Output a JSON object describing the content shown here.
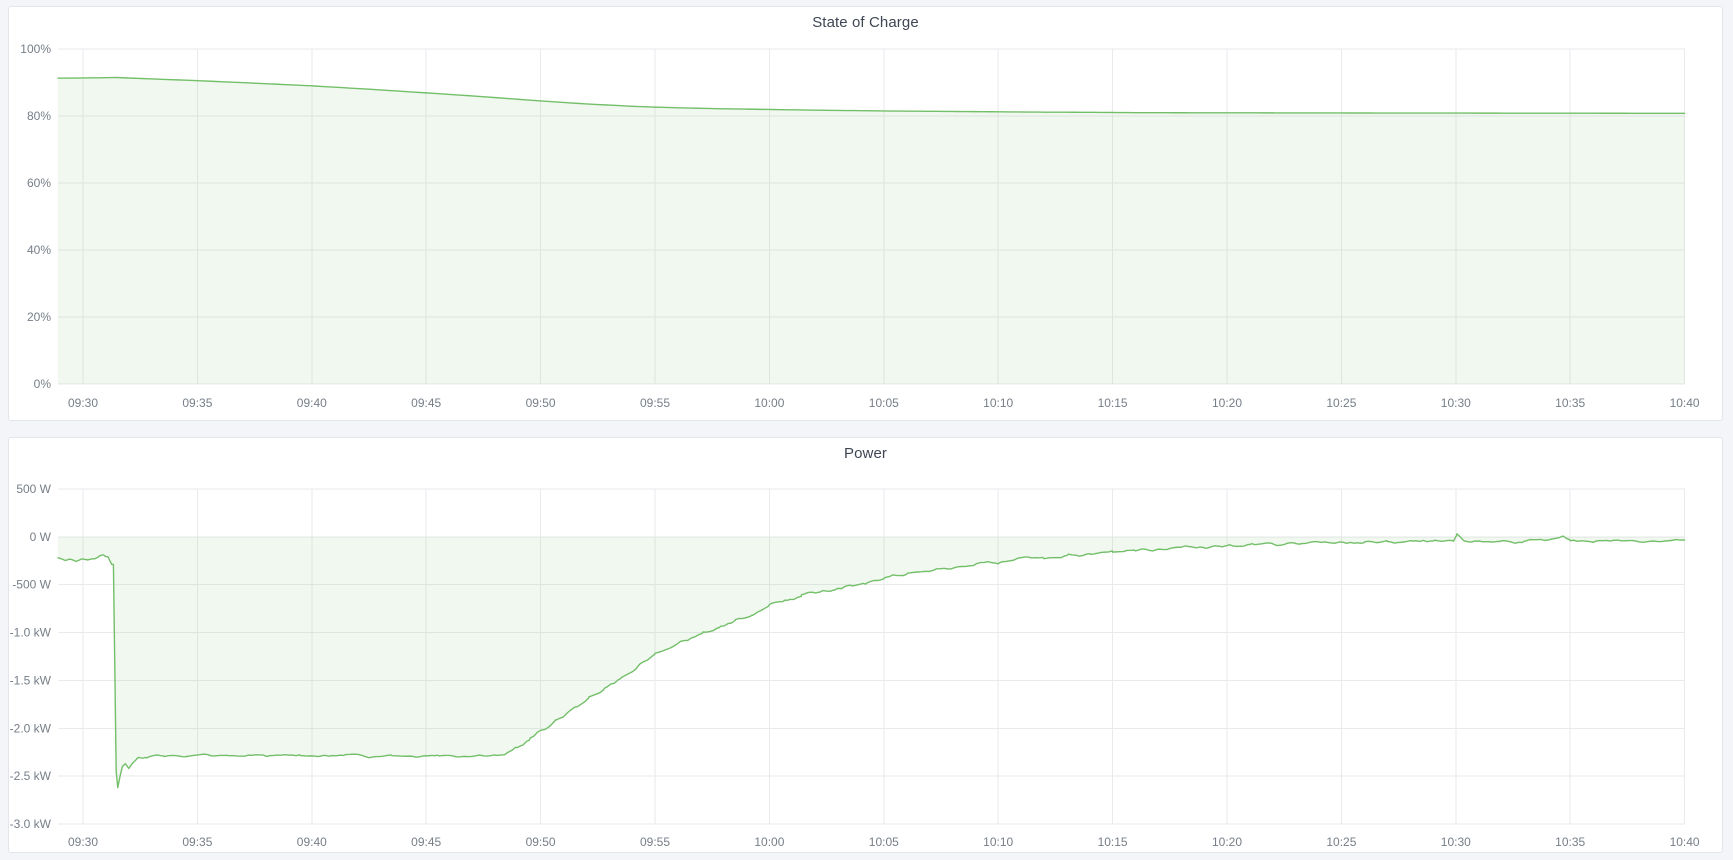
{
  "page": {
    "background": "#f4f5f9",
    "panel_background": "#ffffff",
    "panel_border": "#e2e6ea"
  },
  "panels": [
    {
      "title": "State of Charge"
    },
    {
      "title": "Power"
    }
  ],
  "chart_data": [
    {
      "type": "area",
      "title": "State of Charge",
      "xlabel": "",
      "ylabel": "",
      "legend": "none",
      "grid": true,
      "x_tick_labels": [
        "09:30",
        "09:35",
        "09:40",
        "09:45",
        "09:50",
        "09:55",
        "10:00",
        "10:05",
        "10:10",
        "10:15",
        "10:20",
        "10:25",
        "10:30",
        "10:35",
        "10:40"
      ],
      "x_tick_minutes": [
        0,
        5,
        10,
        15,
        20,
        25,
        30,
        35,
        40,
        45,
        50,
        55,
        60,
        65,
        70
      ],
      "x_domain_minutes": [
        -1.09,
        70.0
      ],
      "y_ticks": [
        {
          "value": 100,
          "label": "100%"
        },
        {
          "value": 80,
          "label": "80%"
        },
        {
          "value": 60,
          "label": "60%"
        },
        {
          "value": 40,
          "label": "40%"
        },
        {
          "value": 20,
          "label": "20%"
        },
        {
          "value": 0,
          "label": "0%"
        }
      ],
      "y_domain": [
        0,
        100
      ],
      "series": [
        {
          "name": "State of Charge",
          "color": "#73bf69",
          "fill": "rgba(115,191,105,0.10)",
          "fill_to": 0,
          "points": [
            [
              -1.09,
              91.3
            ],
            [
              0,
              91.35
            ],
            [
              0.7,
              91.4
            ],
            [
              1.4,
              91.5
            ],
            [
              2.5,
              91.2
            ],
            [
              5,
              90.55
            ],
            [
              7.5,
              89.8
            ],
            [
              10,
              89.0
            ],
            [
              12.5,
              88.0
            ],
            [
              15,
              86.9
            ],
            [
              17,
              86.0
            ],
            [
              19,
              85.0
            ],
            [
              20,
              84.5
            ],
            [
              21,
              84.05
            ],
            [
              22,
              83.6
            ],
            [
              23,
              83.25
            ],
            [
              24,
              82.9
            ],
            [
              25,
              82.65
            ],
            [
              26,
              82.45
            ],
            [
              27,
              82.3
            ],
            [
              28,
              82.15
            ],
            [
              29,
              82.05
            ],
            [
              30,
              81.95
            ],
            [
              31,
              81.85
            ],
            [
              32,
              81.75
            ],
            [
              33,
              81.65
            ],
            [
              34,
              81.6
            ],
            [
              35,
              81.5
            ],
            [
              36,
              81.45
            ],
            [
              38,
              81.35
            ],
            [
              40,
              81.25
            ],
            [
              42,
              81.15
            ],
            [
              44,
              81.1
            ],
            [
              46,
              81.0
            ],
            [
              48,
              80.97
            ],
            [
              50,
              80.95
            ],
            [
              52,
              80.93
            ],
            [
              55,
              80.9
            ],
            [
              58,
              80.88
            ],
            [
              61,
              80.86
            ],
            [
              64,
              80.84
            ],
            [
              67,
              80.82
            ],
            [
              70,
              80.8
            ]
          ],
          "noise_segments": []
        }
      ]
    },
    {
      "type": "area",
      "title": "Power",
      "xlabel": "",
      "ylabel": "",
      "legend": "none",
      "grid": true,
      "x_tick_labels": [
        "09:30",
        "09:35",
        "09:40",
        "09:45",
        "09:50",
        "09:55",
        "10:00",
        "10:05",
        "10:10",
        "10:15",
        "10:20",
        "10:25",
        "10:30",
        "10:35",
        "10:40"
      ],
      "x_tick_minutes": [
        0,
        5,
        10,
        15,
        20,
        25,
        30,
        35,
        40,
        45,
        50,
        55,
        60,
        65,
        70
      ],
      "x_domain_minutes": [
        -1.09,
        70.0
      ],
      "y_ticks": [
        {
          "value": 500,
          "label": "500 W"
        },
        {
          "value": 0,
          "label": "0 W"
        },
        {
          "value": -500,
          "label": "-500 W"
        },
        {
          "value": -1000,
          "label": "-1.0 kW"
        },
        {
          "value": -1500,
          "label": "-1.5 kW"
        },
        {
          "value": -2000,
          "label": "-2.0 kW"
        },
        {
          "value": -2500,
          "label": "-2.5 kW"
        },
        {
          "value": -3000,
          "label": "-3.0 kW"
        }
      ],
      "y_domain": [
        -3000,
        500
      ],
      "series": [
        {
          "name": "Power",
          "color": "#73bf69",
          "fill": "rgba(115,191,105,0.10)",
          "fill_to": 0,
          "points": [
            [
              -1.09,
              -225
            ],
            [
              -0.8,
              -250
            ],
            [
              -0.55,
              -230
            ],
            [
              -0.3,
              -248
            ],
            [
              -0.05,
              -235
            ],
            [
              0.2,
              -242
            ],
            [
              0.45,
              -225
            ],
            [
              0.7,
              -205
            ],
            [
              0.9,
              -185
            ],
            [
              1.1,
              -200
            ],
            [
              1.25,
              -285
            ],
            [
              1.33,
              -290
            ],
            [
              1.45,
              -2450
            ],
            [
              1.52,
              -2620
            ],
            [
              1.62,
              -2500
            ],
            [
              1.72,
              -2400
            ],
            [
              1.85,
              -2370
            ],
            [
              2.0,
              -2420
            ],
            [
              2.15,
              -2370
            ],
            [
              2.4,
              -2310
            ],
            [
              2.8,
              -2300
            ],
            [
              3.5,
              -2280
            ],
            [
              4.5,
              -2290
            ],
            [
              5.5,
              -2280
            ],
            [
              6.5,
              -2295
            ],
            [
              7.5,
              -2280
            ],
            [
              8.5,
              -2290
            ],
            [
              9.5,
              -2278
            ],
            [
              10.5,
              -2290
            ],
            [
              11.5,
              -2280
            ],
            [
              12.5,
              -2292
            ],
            [
              13.5,
              -2280
            ],
            [
              14.5,
              -2290
            ],
            [
              15.5,
              -2280
            ],
            [
              16.5,
              -2288
            ],
            [
              17.5,
              -2280
            ],
            [
              18.4,
              -2285
            ],
            [
              19.0,
              -2200
            ],
            [
              19.5,
              -2120
            ],
            [
              20,
              -2030
            ],
            [
              20.7,
              -1920
            ],
            [
              21.4,
              -1800
            ],
            [
              22.1,
              -1690
            ],
            [
              22.8,
              -1580
            ],
            [
              23.5,
              -1480
            ],
            [
              24.2,
              -1380
            ],
            [
              25,
              -1220
            ],
            [
              25.7,
              -1150
            ],
            [
              26.4,
              -1080
            ],
            [
              27.1,
              -1010
            ],
            [
              27.8,
              -950
            ],
            [
              28.5,
              -880
            ],
            [
              29.2,
              -820
            ],
            [
              30,
              -700
            ],
            [
              30.7,
              -660
            ],
            [
              31.4,
              -620
            ],
            [
              32.1,
              -585
            ],
            [
              32.8,
              -550
            ],
            [
              33.5,
              -515
            ],
            [
              34.2,
              -480
            ],
            [
              35,
              -430
            ],
            [
              36,
              -390
            ],
            [
              37,
              -355
            ],
            [
              38,
              -325
            ],
            [
              39,
              -295
            ],
            [
              40,
              -265
            ],
            [
              41,
              -235
            ],
            [
              42,
              -215
            ],
            [
              43,
              -195
            ],
            [
              44,
              -175
            ],
            [
              45,
              -155
            ],
            [
              46,
              -140
            ],
            [
              47,
              -125
            ],
            [
              48,
              -112
            ],
            [
              49,
              -102
            ],
            [
              50,
              -92
            ],
            [
              51,
              -84
            ],
            [
              52,
              -78
            ],
            [
              53,
              -72
            ],
            [
              54,
              -66
            ],
            [
              55,
              -60
            ],
            [
              56,
              -57
            ],
            [
              57,
              -54
            ],
            [
              58,
              -52
            ],
            [
              59,
              -50
            ],
            [
              59.9,
              -55
            ],
            [
              60.05,
              25
            ],
            [
              60.3,
              -40
            ],
            [
              61,
              -48
            ],
            [
              62,
              -45
            ],
            [
              63,
              -48
            ],
            [
              64,
              -42
            ],
            [
              64.7,
              -5
            ],
            [
              65,
              -40
            ],
            [
              66,
              -42
            ],
            [
              67,
              -38
            ],
            [
              68,
              -42
            ],
            [
              69,
              -40
            ],
            [
              70,
              -35
            ]
          ],
          "noise_segments": [
            [
              -1.09,
              1.2,
              18
            ],
            [
              2.3,
              18.4,
              20
            ],
            [
              18.4,
              34,
              28
            ],
            [
              34,
              54,
              26
            ],
            [
              54,
              70,
              24
            ]
          ]
        }
      ]
    }
  ]
}
